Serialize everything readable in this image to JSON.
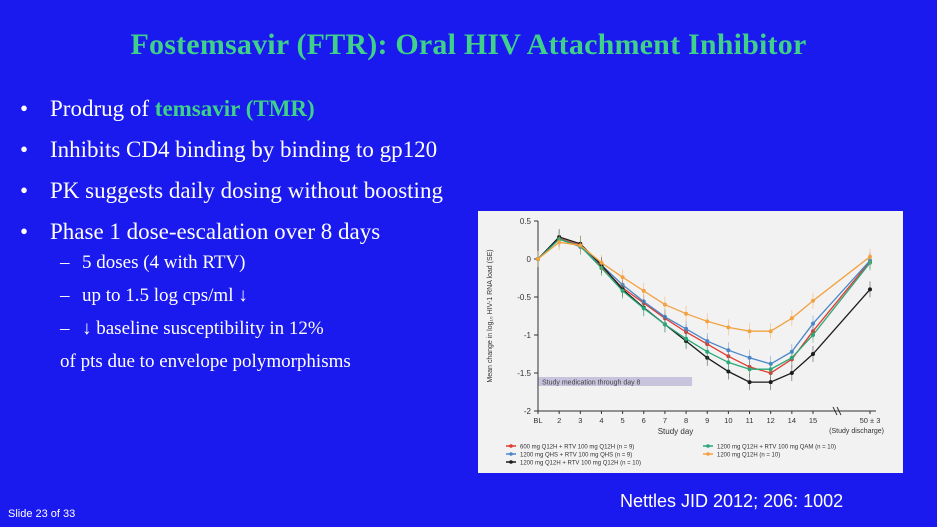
{
  "title": "Fostemsavir (FTR): Oral HIV Attachment Inhibitor",
  "bullets": [
    {
      "marker": "•",
      "prefix": "Prodrug of ",
      "highlight": "temsavir (TMR)"
    },
    {
      "marker": "•",
      "text": "Inhibits CD4 binding by binding to gp120"
    },
    {
      "marker": "•",
      "text": "PK suggests daily dosing without boosting"
    },
    {
      "marker": "•",
      "text": "Phase 1 dose-escalation over 8 days"
    }
  ],
  "subbullets": [
    {
      "marker": "–",
      "text": "5 doses (4 with RTV)"
    },
    {
      "marker": "–",
      "text": "up to 1.5 log cps/ml ↓"
    },
    {
      "marker": "–",
      "text": "↓ baseline susceptibility in 12%",
      "continuation": "of pts due to envelope polymorphisms"
    }
  ],
  "footer": {
    "slide_number": "Slide 23 of 33",
    "citation": "Nettles JID 2012; 206: 1002"
  },
  "colors": {
    "background": "#1a1aee",
    "title": "#3fd08a",
    "highlight": "#3fd08a",
    "text": "#ffffff"
  },
  "chart_data": {
    "type": "line",
    "xlabel": "Study day",
    "ylabel": "Mean change in log₁₀ HIV-1 RNA load (SE)",
    "x_ticks": [
      "BL",
      "2",
      "3",
      "4",
      "5",
      "6",
      "7",
      "8",
      "9",
      "10",
      "11",
      "12",
      "14",
      "15",
      "50 ± 3"
    ],
    "x_extra_label": "(Study discharge)",
    "y_ticks": [
      "0.5",
      "0",
      "-0.5",
      "-1",
      "-1.5",
      "-2"
    ],
    "ylim": [
      -2,
      0.5
    ],
    "annotation": "Study medication through day 8",
    "series": [
      {
        "name": "600 mg Q12H + RTV 100 mg Q12H (n = 9)",
        "color": "#e03a2f",
        "values": [
          0,
          0.27,
          0.18,
          -0.1,
          -0.38,
          -0.58,
          -0.78,
          -0.96,
          -1.12,
          -1.28,
          -1.42,
          -1.5,
          -1.32,
          -0.95,
          -0.03
        ]
      },
      {
        "name": "1200 mg QHS + RTV 100 mg QHS (n = 9)",
        "color": "#4a86c8",
        "values": [
          0,
          0.26,
          0.16,
          -0.08,
          -0.34,
          -0.56,
          -0.76,
          -0.92,
          -1.08,
          -1.2,
          -1.3,
          -1.38,
          -1.22,
          -0.85,
          -0.02
        ]
      },
      {
        "name": "1200 mg Q12H + RTV 100 mg Q12H (n = 10)",
        "color": "#1b1b1b",
        "values": [
          0,
          0.29,
          0.2,
          -0.08,
          -0.4,
          -0.64,
          -0.86,
          -1.08,
          -1.3,
          -1.48,
          -1.62,
          -1.62,
          -1.5,
          -1.25,
          -0.4
        ]
      },
      {
        "name": "1200 mg Q12H + RTV 100 mg QAM (n = 10)",
        "color": "#2aa877",
        "values": [
          0,
          0.26,
          0.17,
          -0.12,
          -0.42,
          -0.65,
          -0.86,
          -1.05,
          -1.22,
          -1.36,
          -1.45,
          -1.45,
          -1.3,
          -1.0,
          -0.05
        ]
      },
      {
        "name": "1200 mg Q12H (n = 10)",
        "color": "#f3a241",
        "values": [
          0,
          0.22,
          0.18,
          -0.05,
          -0.24,
          -0.42,
          -0.6,
          -0.72,
          -0.82,
          -0.9,
          -0.95,
          -0.95,
          -0.78,
          -0.55,
          0.03
        ]
      }
    ]
  }
}
